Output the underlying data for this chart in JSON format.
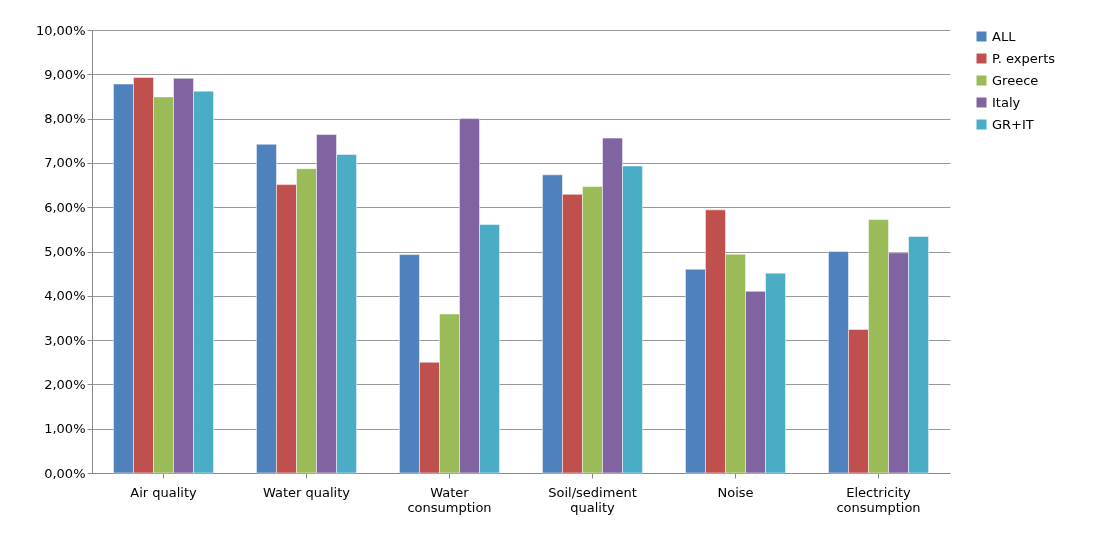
{
  "chart_data": {
    "type": "bar",
    "categories": [
      "Air quality",
      "Water quality",
      "Water consumption",
      "Soil/sediment quality",
      "Noise",
      "Electricity consumption"
    ],
    "series": [
      {
        "name": "ALL",
        "color": "#4f81bd",
        "values": [
          8.78,
          7.42,
          4.93,
          6.73,
          4.6,
          5.0
        ]
      },
      {
        "name": "P. experts",
        "color": "#c0504d",
        "values": [
          8.93,
          6.51,
          2.5,
          6.29,
          5.94,
          3.24
        ]
      },
      {
        "name": "Greece",
        "color": "#9bbb59",
        "values": [
          8.49,
          6.87,
          3.59,
          6.47,
          4.94,
          5.72
        ]
      },
      {
        "name": "Italy",
        "color": "#8064a2",
        "values": [
          8.91,
          7.64,
          8.0,
          7.56,
          4.1,
          4.97
        ]
      },
      {
        "name": "GR+IT",
        "color": "#4bacc6",
        "values": [
          8.62,
          7.19,
          5.61,
          6.93,
          4.51,
          5.34
        ]
      }
    ],
    "ylim": [
      0,
      10
    ],
    "yticks": [
      {
        "value": 0,
        "label": "0,00%"
      },
      {
        "value": 1,
        "label": "1,00%"
      },
      {
        "value": 2,
        "label": "2,00%"
      },
      {
        "value": 3,
        "label": "3,00%"
      },
      {
        "value": 4,
        "label": "4,00%"
      },
      {
        "value": 5,
        "label": "5,00%"
      },
      {
        "value": 6,
        "label": "6,00%"
      },
      {
        "value": 7,
        "label": "7,00%"
      },
      {
        "value": 8,
        "label": "8,00%"
      },
      {
        "value": 9,
        "label": "9,00%"
      },
      {
        "value": 10,
        "label": "10,00%"
      }
    ],
    "grid": "y",
    "legend": "right"
  }
}
